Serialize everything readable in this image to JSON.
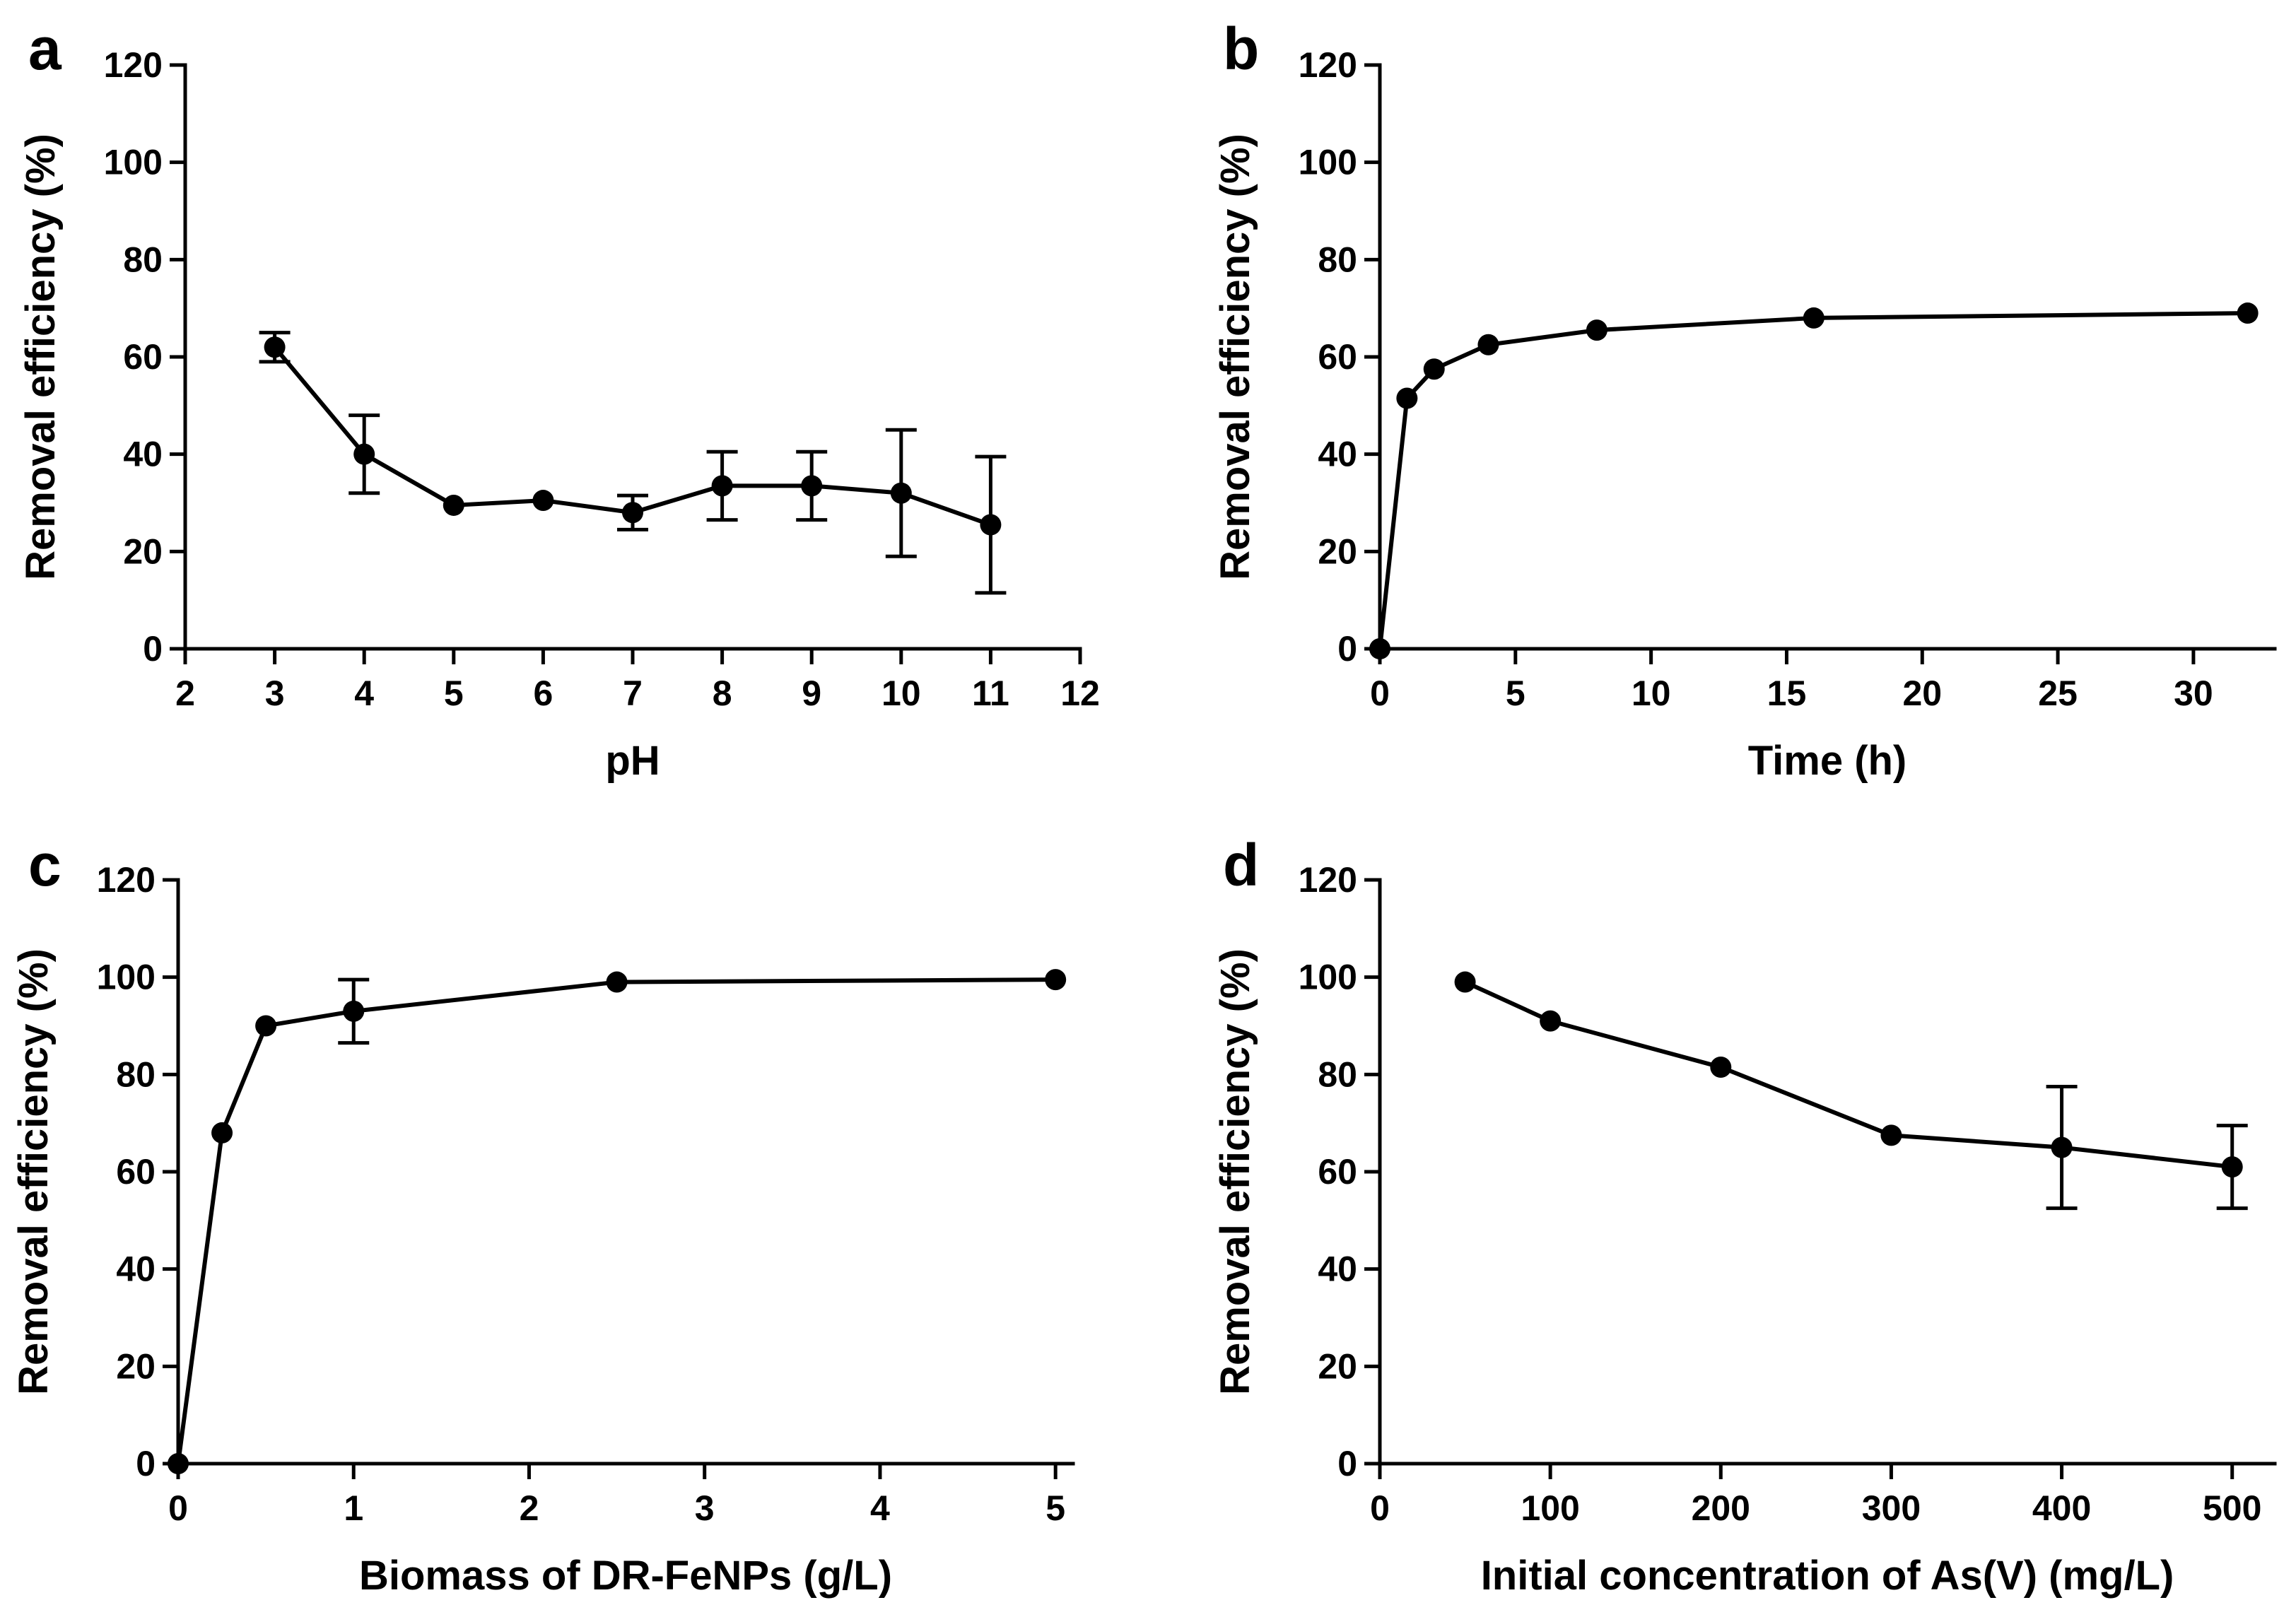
{
  "chart_data": [
    {
      "type": "line",
      "panel_label": "a",
      "title": "",
      "xlabel": "pH",
      "ylabel": "Removal efficiency (%)",
      "xlim": [
        2,
        12
      ],
      "ylim": [
        0,
        120
      ],
      "xticks": [
        2,
        3,
        4,
        5,
        6,
        7,
        8,
        9,
        10,
        11,
        12
      ],
      "xtick_labels": [
        "2",
        "3",
        "4",
        "5",
        "6",
        "7",
        "8",
        "9",
        "10",
        "11",
        "12"
      ],
      "yticks": [
        0,
        20,
        40,
        60,
        80,
        100,
        120
      ],
      "ytick_labels": [
        "0",
        "20",
        "40",
        "60",
        "80",
        "100",
        "120"
      ],
      "grid": false,
      "series": [
        {
          "name": "Removal efficiency",
          "x": [
            3,
            4,
            5,
            6,
            7,
            8,
            9,
            10,
            11
          ],
          "y": [
            62,
            40,
            29.5,
            30.5,
            28,
            33.5,
            33.5,
            32,
            25.5
          ],
          "yerr": [
            3,
            8,
            0,
            0,
            3.5,
            7,
            7,
            13,
            14
          ]
        }
      ]
    },
    {
      "type": "line",
      "panel_label": "b",
      "title": "",
      "xlabel": "Time (h)",
      "ylabel": "Removal efficiency (%)",
      "xlim": [
        0,
        33
      ],
      "ylim": [
        0,
        120
      ],
      "xticks": [
        0,
        5,
        10,
        15,
        20,
        25,
        30
      ],
      "xtick_labels": [
        "0",
        "5",
        "10",
        "15",
        "20",
        "25",
        "30"
      ],
      "yticks": [
        0,
        20,
        40,
        60,
        80,
        100,
        120
      ],
      "ytick_labels": [
        "0",
        "20",
        "40",
        "60",
        "80",
        "100",
        "120"
      ],
      "grid": false,
      "series": [
        {
          "name": "Removal efficiency",
          "x": [
            0,
            1,
            2,
            4,
            8,
            16,
            32
          ],
          "y": [
            0,
            51.5,
            57.5,
            62.5,
            65.5,
            68,
            69
          ],
          "yerr": [
            0,
            0,
            0,
            0,
            0,
            0,
            0
          ]
        }
      ]
    },
    {
      "type": "line",
      "panel_label": "c",
      "title": "",
      "xlabel": "Biomass of DR-FeNPs (g/L)",
      "ylabel": "Removal efficiency (%)",
      "xlim": [
        0,
        5.1
      ],
      "ylim": [
        0,
        120
      ],
      "xticks": [
        0,
        1,
        2,
        3,
        4,
        5
      ],
      "xtick_labels": [
        "0",
        "1",
        "2",
        "3",
        "4",
        "5"
      ],
      "yticks": [
        0,
        20,
        40,
        60,
        80,
        100,
        120
      ],
      "ytick_labels": [
        "0",
        "20",
        "40",
        "60",
        "80",
        "100",
        "120"
      ],
      "grid": false,
      "series": [
        {
          "name": "Removal efficiency",
          "x": [
            0,
            0.25,
            0.5,
            1,
            2.5,
            5
          ],
          "y": [
            0,
            68,
            90,
            93,
            99,
            99.5
          ],
          "yerr": [
            0,
            0,
            0,
            6.5,
            0,
            0
          ]
        }
      ]
    },
    {
      "type": "line",
      "panel_label": "d",
      "title": "",
      "xlabel": "Initial concentration of As(V) (mg/L)",
      "ylabel": "Removal efficiency (%)",
      "xlim": [
        0,
        525
      ],
      "ylim": [
        0,
        120
      ],
      "xticks": [
        0,
        100,
        200,
        300,
        400,
        500
      ],
      "xtick_labels": [
        "0",
        "100",
        "200",
        "300",
        "400",
        "500"
      ],
      "yticks": [
        0,
        20,
        40,
        60,
        80,
        100,
        120
      ],
      "ytick_labels": [
        "0",
        "20",
        "40",
        "60",
        "80",
        "100",
        "120"
      ],
      "grid": false,
      "series": [
        {
          "name": "Removal efficiency",
          "x": [
            50,
            100,
            200,
            300,
            400,
            500
          ],
          "y": [
            99,
            91,
            81.5,
            67.5,
            65,
            61
          ],
          "yerr": [
            0,
            0,
            0,
            0,
            12.5,
            8.5
          ]
        }
      ]
    }
  ]
}
